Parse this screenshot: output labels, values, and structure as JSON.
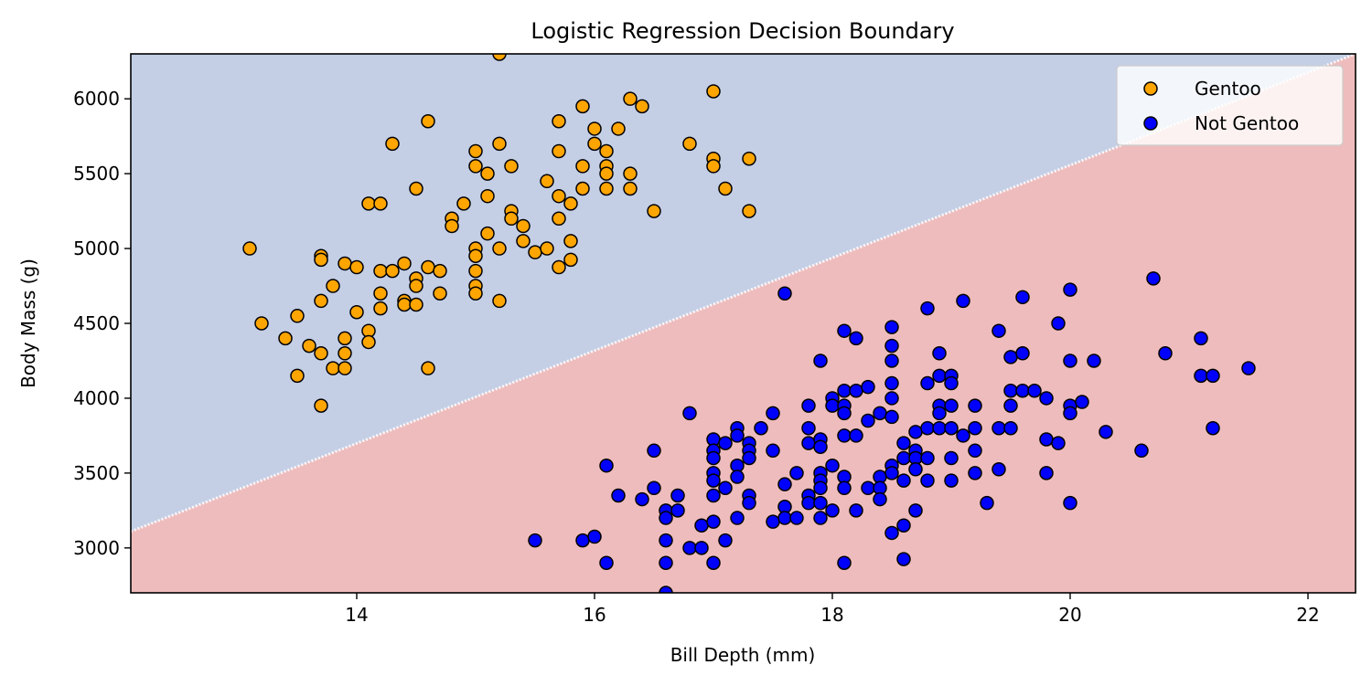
{
  "chart_data": {
    "type": "scatter",
    "title": "Logistic Regression Decision Boundary",
    "xlabel": "Bill Depth (mm)",
    "ylabel": "Body Mass (g)",
    "xlim": [
      12.1,
      22.4
    ],
    "ylim": [
      2700,
      6300
    ],
    "xticks": [
      14,
      16,
      18,
      20,
      22
    ],
    "yticks": [
      3000,
      3500,
      4000,
      4500,
      5000,
      5500,
      6000
    ],
    "grid": false,
    "legend_position": "top-right",
    "decision_boundary": {
      "x": [
        12.1,
        22.4
      ],
      "y": [
        3110,
        6300
      ]
    },
    "regions": [
      {
        "class": "Gentoo",
        "side": "above",
        "color": "#c4cfe6"
      },
      {
        "class": "Not Gentoo",
        "side": "below",
        "color": "#eebcbd"
      }
    ],
    "series": [
      {
        "name": "Gentoo",
        "color": "#ffa500",
        "points": [
          [
            13.1,
            5000
          ],
          [
            13.2,
            4500
          ],
          [
            13.4,
            4400
          ],
          [
            13.5,
            4550
          ],
          [
            13.5,
            4150
          ],
          [
            13.6,
            4350
          ],
          [
            13.7,
            4950
          ],
          [
            13.7,
            4925
          ],
          [
            13.7,
            4650
          ],
          [
            13.7,
            4300
          ],
          [
            13.7,
            3950
          ],
          [
            13.8,
            4750
          ],
          [
            13.8,
            4200
          ],
          [
            13.9,
            4900
          ],
          [
            13.9,
            4400
          ],
          [
            13.9,
            4300
          ],
          [
            13.9,
            4200
          ],
          [
            14.0,
            4875
          ],
          [
            14.0,
            4575
          ],
          [
            14.1,
            5300
          ],
          [
            14.1,
            4450
          ],
          [
            14.1,
            4375
          ],
          [
            14.2,
            5300
          ],
          [
            14.2,
            4850
          ],
          [
            14.2,
            4700
          ],
          [
            14.2,
            4600
          ],
          [
            14.3,
            5700
          ],
          [
            14.3,
            4850
          ],
          [
            14.4,
            4900
          ],
          [
            14.4,
            4650
          ],
          [
            14.4,
            4625
          ],
          [
            14.5,
            5400
          ],
          [
            14.5,
            4800
          ],
          [
            14.5,
            4750
          ],
          [
            14.5,
            4625
          ],
          [
            14.6,
            5850
          ],
          [
            14.6,
            4875
          ],
          [
            14.6,
            4200
          ],
          [
            14.7,
            4850
          ],
          [
            14.7,
            4700
          ],
          [
            14.8,
            5200
          ],
          [
            14.8,
            5150
          ],
          [
            14.9,
            5300
          ],
          [
            15.0,
            5650
          ],
          [
            15.0,
            5550
          ],
          [
            15.0,
            5000
          ],
          [
            15.0,
            4950
          ],
          [
            15.0,
            4850
          ],
          [
            15.0,
            4750
          ],
          [
            15.0,
            4700
          ],
          [
            15.1,
            5500
          ],
          [
            15.1,
            5350
          ],
          [
            15.1,
            5100
          ],
          [
            15.2,
            6300
          ],
          [
            15.2,
            5700
          ],
          [
            15.2,
            5000
          ],
          [
            15.2,
            4650
          ],
          [
            15.3,
            5550
          ],
          [
            15.3,
            5250
          ],
          [
            15.3,
            5200
          ],
          [
            15.4,
            5150
          ],
          [
            15.4,
            5050
          ],
          [
            15.5,
            4975
          ],
          [
            15.6,
            5450
          ],
          [
            15.6,
            5000
          ],
          [
            15.7,
            5850
          ],
          [
            15.7,
            5650
          ],
          [
            15.7,
            5350
          ],
          [
            15.7,
            5200
          ],
          [
            15.7,
            4875
          ],
          [
            15.8,
            5300
          ],
          [
            15.8,
            5050
          ],
          [
            15.8,
            4925
          ],
          [
            15.9,
            5950
          ],
          [
            15.9,
            5550
          ],
          [
            15.9,
            5400
          ],
          [
            16.0,
            5800
          ],
          [
            16.0,
            5700
          ],
          [
            16.1,
            5650
          ],
          [
            16.1,
            5550
          ],
          [
            16.1,
            5500
          ],
          [
            16.1,
            5400
          ],
          [
            16.2,
            5800
          ],
          [
            16.3,
            6000
          ],
          [
            16.3,
            5500
          ],
          [
            16.3,
            5400
          ],
          [
            16.4,
            5950
          ],
          [
            16.5,
            5250
          ],
          [
            16.8,
            5700
          ],
          [
            17.0,
            6050
          ],
          [
            17.0,
            5600
          ],
          [
            17.0,
            5550
          ],
          [
            17.1,
            5400
          ],
          [
            17.3,
            5600
          ],
          [
            17.3,
            5250
          ]
        ]
      },
      {
        "name": "Not Gentoo",
        "color": "#0000ff",
        "points": [
          [
            15.5,
            3050
          ],
          [
            15.9,
            3050
          ],
          [
            16.0,
            3075
          ],
          [
            16.1,
            3550
          ],
          [
            16.1,
            2900
          ],
          [
            16.2,
            3350
          ],
          [
            16.4,
            3325
          ],
          [
            16.5,
            3650
          ],
          [
            16.5,
            3400
          ],
          [
            16.6,
            3250
          ],
          [
            16.6,
            3200
          ],
          [
            16.6,
            3050
          ],
          [
            16.6,
            2900
          ],
          [
            16.6,
            2700
          ],
          [
            16.7,
            3350
          ],
          [
            16.7,
            3250
          ],
          [
            16.8,
            3900
          ],
          [
            16.8,
            3000
          ],
          [
            16.9,
            3150
          ],
          [
            16.9,
            3000
          ],
          [
            17.0,
            3725
          ],
          [
            17.0,
            3650
          ],
          [
            17.0,
            3600
          ],
          [
            17.0,
            3500
          ],
          [
            17.0,
            3450
          ],
          [
            17.0,
            3350
          ],
          [
            17.0,
            3175
          ],
          [
            17.0,
            2900
          ],
          [
            17.1,
            3700
          ],
          [
            17.1,
            3400
          ],
          [
            17.1,
            3050
          ],
          [
            17.2,
            3800
          ],
          [
            17.2,
            3750
          ],
          [
            17.2,
            3550
          ],
          [
            17.2,
            3475
          ],
          [
            17.2,
            3200
          ],
          [
            17.3,
            3700
          ],
          [
            17.3,
            3650
          ],
          [
            17.3,
            3600
          ],
          [
            17.3,
            3350
          ],
          [
            17.3,
            3300
          ],
          [
            17.4,
            3800
          ],
          [
            17.5,
            3900
          ],
          [
            17.5,
            3650
          ],
          [
            17.5,
            3175
          ],
          [
            17.6,
            4700
          ],
          [
            17.6,
            3425
          ],
          [
            17.6,
            3275
          ],
          [
            17.6,
            3200
          ],
          [
            17.7,
            3500
          ],
          [
            17.7,
            3200
          ],
          [
            17.8,
            3950
          ],
          [
            17.8,
            3800
          ],
          [
            17.8,
            3700
          ],
          [
            17.8,
            3350
          ],
          [
            17.8,
            3300
          ],
          [
            17.9,
            4250
          ],
          [
            17.9,
            3725
          ],
          [
            17.9,
            3675
          ],
          [
            17.9,
            3500
          ],
          [
            17.9,
            3450
          ],
          [
            17.9,
            3400
          ],
          [
            17.9,
            3300
          ],
          [
            17.9,
            3200
          ],
          [
            18.0,
            4000
          ],
          [
            18.0,
            3950
          ],
          [
            18.0,
            3550
          ],
          [
            18.0,
            3250
          ],
          [
            18.1,
            4450
          ],
          [
            18.1,
            4050
          ],
          [
            18.1,
            3950
          ],
          [
            18.1,
            3900
          ],
          [
            18.1,
            3750
          ],
          [
            18.1,
            3475
          ],
          [
            18.1,
            3400
          ],
          [
            18.1,
            2900
          ],
          [
            18.2,
            4400
          ],
          [
            18.2,
            4050
          ],
          [
            18.2,
            3750
          ],
          [
            18.2,
            3250
          ],
          [
            18.3,
            4075
          ],
          [
            18.3,
            3850
          ],
          [
            18.3,
            3400
          ],
          [
            18.4,
            3900
          ],
          [
            18.4,
            3475
          ],
          [
            18.4,
            3400
          ],
          [
            18.4,
            3325
          ],
          [
            18.5,
            4475
          ],
          [
            18.5,
            4350
          ],
          [
            18.5,
            4250
          ],
          [
            18.5,
            4100
          ],
          [
            18.5,
            4000
          ],
          [
            18.5,
            3875
          ],
          [
            18.5,
            3550
          ],
          [
            18.5,
            3500
          ],
          [
            18.5,
            3100
          ],
          [
            18.6,
            3700
          ],
          [
            18.6,
            3600
          ],
          [
            18.6,
            3450
          ],
          [
            18.6,
            3150
          ],
          [
            18.6,
            2925
          ],
          [
            18.7,
            3775
          ],
          [
            18.7,
            3650
          ],
          [
            18.7,
            3600
          ],
          [
            18.7,
            3525
          ],
          [
            18.7,
            3250
          ],
          [
            18.8,
            4600
          ],
          [
            18.8,
            4100
          ],
          [
            18.8,
            3800
          ],
          [
            18.8,
            3600
          ],
          [
            18.8,
            3450
          ],
          [
            18.9,
            4300
          ],
          [
            18.9,
            4150
          ],
          [
            18.9,
            3950
          ],
          [
            18.9,
            3900
          ],
          [
            18.9,
            3800
          ],
          [
            19.0,
            4150
          ],
          [
            19.0,
            4100
          ],
          [
            19.0,
            3950
          ],
          [
            19.0,
            3800
          ],
          [
            19.0,
            3600
          ],
          [
            19.0,
            3450
          ],
          [
            19.1,
            4650
          ],
          [
            19.1,
            3750
          ],
          [
            19.2,
            3950
          ],
          [
            19.2,
            3800
          ],
          [
            19.2,
            3650
          ],
          [
            19.2,
            3500
          ],
          [
            19.3,
            3300
          ],
          [
            19.4,
            4450
          ],
          [
            19.4,
            3800
          ],
          [
            19.4,
            3525
          ],
          [
            19.5,
            4275
          ],
          [
            19.5,
            4050
          ],
          [
            19.5,
            3950
          ],
          [
            19.5,
            3800
          ],
          [
            19.6,
            4675
          ],
          [
            19.6,
            4300
          ],
          [
            19.6,
            4050
          ],
          [
            19.7,
            4050
          ],
          [
            19.8,
            4000
          ],
          [
            19.8,
            3725
          ],
          [
            19.8,
            3500
          ],
          [
            19.9,
            4500
          ],
          [
            19.9,
            3700
          ],
          [
            20.0,
            4725
          ],
          [
            20.0,
            4250
          ],
          [
            20.0,
            3950
          ],
          [
            20.0,
            3900
          ],
          [
            20.0,
            3300
          ],
          [
            20.1,
            3975
          ],
          [
            20.2,
            4250
          ],
          [
            20.3,
            3775
          ],
          [
            20.6,
            3650
          ],
          [
            20.7,
            4800
          ],
          [
            20.8,
            4300
          ],
          [
            21.1,
            4400
          ],
          [
            21.1,
            4150
          ],
          [
            21.2,
            4150
          ],
          [
            21.2,
            3800
          ],
          [
            21.5,
            4200
          ]
        ]
      }
    ]
  }
}
